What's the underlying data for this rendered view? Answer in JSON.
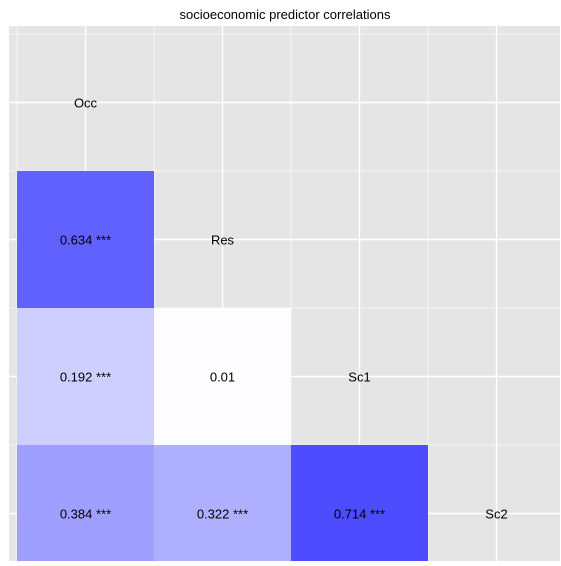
{
  "chart_data": {
    "type": "heatmap",
    "title": "socioeconomic predictor correlations",
    "variables": [
      "Occ",
      "Res",
      "Sc1",
      "Sc2"
    ],
    "cells": [
      {
        "row": "Res",
        "col": "Occ",
        "value": 0.634,
        "label": "0.634 ***"
      },
      {
        "row": "Sc1",
        "col": "Occ",
        "value": 0.192,
        "label": "0.192 ***"
      },
      {
        "row": "Sc1",
        "col": "Res",
        "value": 0.01,
        "label": "0.01"
      },
      {
        "row": "Sc2",
        "col": "Occ",
        "value": 0.384,
        "label": "0.384 ***"
      },
      {
        "row": "Sc2",
        "col": "Res",
        "value": 0.322,
        "label": "0.322 ***"
      },
      {
        "row": "Sc2",
        "col": "Sc1",
        "value": 0.714,
        "label": "0.714 ***"
      }
    ],
    "value_range": [
      0,
      0.75
    ],
    "color_low": "#ffffff",
    "color_high": "#4444ff",
    "panel_background": "#e5e5e5",
    "grid_color": "#ffffff",
    "grid": true,
    "legend": "none"
  }
}
